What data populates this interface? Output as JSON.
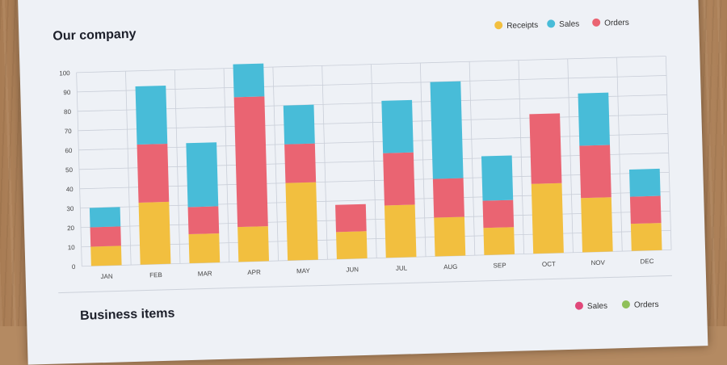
{
  "chart_data": [
    {
      "type": "bar",
      "stacked": true,
      "title": "Our company",
      "categories": [
        "JAN",
        "FEB",
        "MAR",
        "APR",
        "MAY",
        "JUN",
        "JUL",
        "AUG",
        "SEP",
        "OCT",
        "NOV",
        "DEC"
      ],
      "series": [
        {
          "name": "Receipts",
          "color": "#f2bf3f",
          "values": [
            10,
            32,
            15,
            18,
            40,
            14,
            27,
            20,
            14,
            36,
            28,
            14
          ]
        },
        {
          "name": "Orders",
          "color": "#ea6472",
          "values": [
            10,
            30,
            14,
            67,
            20,
            14,
            27,
            20,
            14,
            36,
            27,
            14
          ]
        },
        {
          "name": "Sales",
          "color": "#48bcd8",
          "values": [
            10,
            30,
            33,
            17,
            20,
            0,
            27,
            50,
            23,
            0,
            27,
            14
          ]
        }
      ],
      "ylim": [
        0,
        100
      ],
      "yticks": [
        0,
        10,
        20,
        30,
        40,
        50,
        60,
        70,
        80,
        90,
        100
      ],
      "grid": true,
      "legend": "top-right"
    },
    {
      "type": "bar",
      "title": "Business items",
      "series": [
        {
          "name": "Sales",
          "color": "#e0487a"
        },
        {
          "name": "Orders",
          "color": "#8fc05a"
        }
      ],
      "legend": "top-right"
    }
  ]
}
